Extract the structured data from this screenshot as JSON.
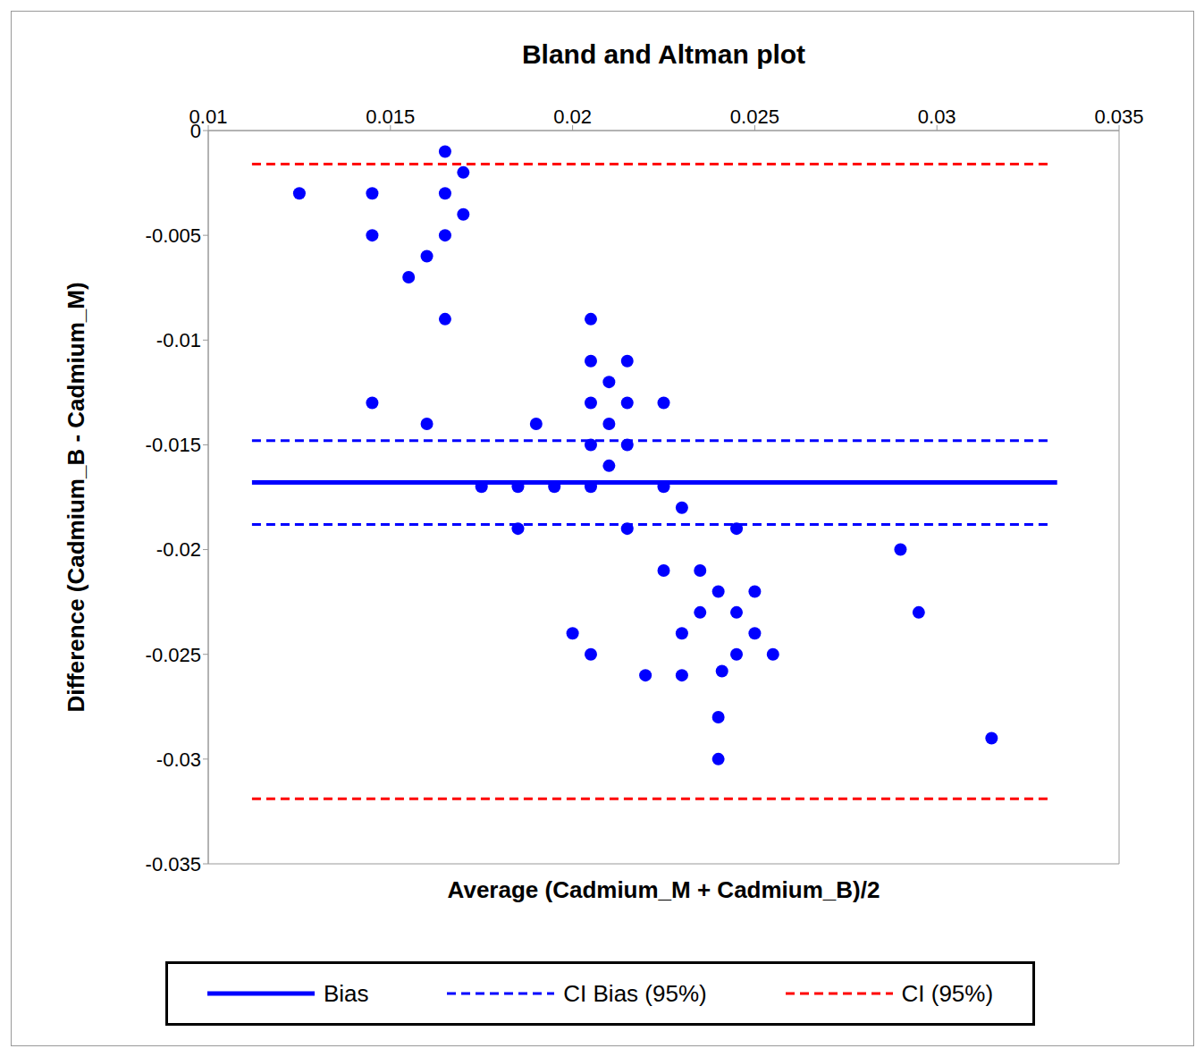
{
  "chart_data": {
    "type": "scatter",
    "title": "Bland and Altman plot",
    "x_label": "Average (Cadmium_M + Cadmium_B)/2",
    "y_label": "Difference (Cadmium_B - Cadmium_M)",
    "xlim": [
      0.01,
      0.035
    ],
    "xticks": [
      0.01,
      0.015,
      0.02,
      0.025,
      0.03,
      0.035
    ],
    "ylim": [
      -0.035,
      0
    ],
    "yticks": [
      0,
      -0.005,
      -0.01,
      -0.015,
      -0.02,
      -0.025,
      -0.03,
      -0.035
    ],
    "grid": false,
    "legend": "bottom",
    "color": "#0000ff",
    "marker": "circle",
    "x": [
      0.0125,
      0.0145,
      0.0145,
      0.0145,
      0.0155,
      0.016,
      0.016,
      0.0165,
      0.0165,
      0.0165,
      0.0165,
      0.017,
      0.017,
      0.0175,
      0.0185,
      0.0185,
      0.019,
      0.0195,
      0.02,
      0.0205,
      0.0205,
      0.0205,
      0.0205,
      0.0205,
      0.0205,
      0.021,
      0.021,
      0.021,
      0.0215,
      0.0215,
      0.0215,
      0.0215,
      0.022,
      0.0225,
      0.0225,
      0.0225,
      0.023,
      0.023,
      0.023,
      0.0235,
      0.0235,
      0.024,
      0.024,
      0.024,
      0.0241,
      0.0245,
      0.0245,
      0.0245,
      0.025,
      0.025,
      0.0255,
      0.029,
      0.0295,
      0.0315
    ],
    "values": [
      -0.003,
      -0.003,
      -0.005,
      -0.013,
      -0.007,
      -0.006,
      -0.014,
      -0.001,
      -0.003,
      -0.005,
      -0.009,
      -0.002,
      -0.004,
      -0.017,
      -0.017,
      -0.019,
      -0.014,
      -0.017,
      -0.024,
      -0.009,
      -0.011,
      -0.013,
      -0.015,
      -0.017,
      -0.025,
      -0.012,
      -0.014,
      -0.016,
      -0.011,
      -0.013,
      -0.015,
      -0.019,
      -0.026,
      -0.013,
      -0.017,
      -0.021,
      -0.018,
      -0.024,
      -0.026,
      -0.021,
      -0.023,
      -0.022,
      -0.028,
      -0.03,
      -0.0258,
      -0.019,
      -0.023,
      -0.025,
      -0.022,
      -0.024,
      -0.025,
      -0.02,
      -0.023,
      -0.029
    ],
    "lines": [
      {
        "name": "Bias",
        "color": "#0000ff",
        "line_style": "solid",
        "x": [
          0.0112,
          0.0333
        ],
        "levels": [
          -0.0168
        ]
      },
      {
        "name": "CI Bias (95%)",
        "color": "#0000ff",
        "line_style": "dashed",
        "x": [
          0.0112,
          0.0331
        ],
        "levels": [
          -0.0148,
          -0.0188
        ]
      },
      {
        "name": "CI (95%)",
        "color": "#ff0000",
        "line_style": "dashed",
        "x": [
          0.0112,
          0.0331
        ],
        "levels": [
          -0.0016,
          -0.0319
        ]
      }
    ]
  }
}
